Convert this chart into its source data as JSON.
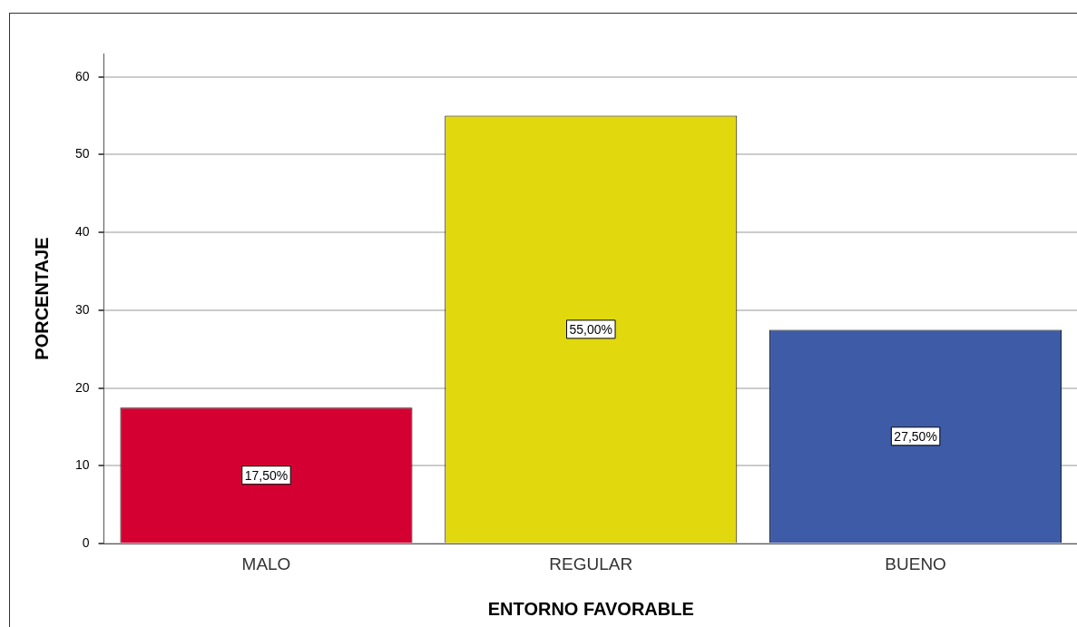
{
  "chart_data": {
    "type": "bar",
    "xlabel": "ENTORNO FAVORABLE",
    "ylabel": "PORCENTAJE",
    "categories": [
      "MALO",
      "REGULAR",
      "BUENO"
    ],
    "values": [
      17.5,
      55,
      27.5
    ],
    "colors": [
      "#d50032",
      "#e1d80e",
      "#3e5ba8"
    ],
    "value_labels": [
      "17,50%",
      "55,00%",
      "27,50%"
    ],
    "ylim": [
      0,
      63
    ],
    "yticks": [
      0,
      10,
      20,
      30,
      40,
      50,
      60
    ],
    "grid": "y",
    "legend": false
  }
}
